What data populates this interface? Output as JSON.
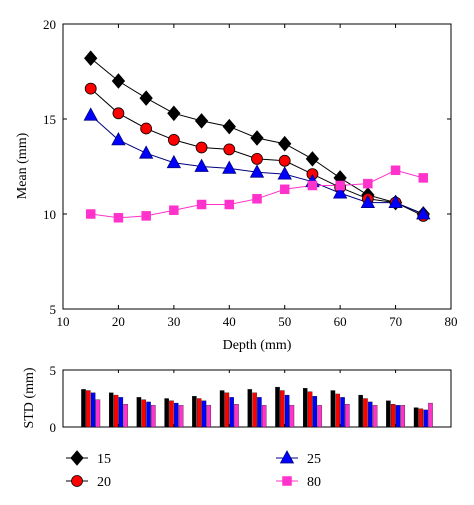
{
  "chart_data": [
    {
      "type": "line",
      "xlabel": "Depth (mm)",
      "ylabel": "Mean (mm)",
      "xlim": [
        10,
        80
      ],
      "ylim": [
        5,
        20
      ],
      "xticks": [
        "10",
        "20",
        "30",
        "40",
        "50",
        "60",
        "70",
        "80"
      ],
      "yticks": [
        "5",
        "10",
        "15",
        "20"
      ],
      "grid": false,
      "x": [
        15,
        20,
        25,
        30,
        35,
        40,
        45,
        50,
        55,
        60,
        65,
        70,
        75
      ],
      "series": [
        {
          "name": "15",
          "marker": "diamond",
          "color": "#000000",
          "fill": "#000000",
          "values": [
            18.2,
            17.0,
            16.1,
            15.3,
            14.9,
            14.6,
            14.0,
            13.7,
            12.9,
            11.9,
            11.0,
            10.6,
            10.0
          ]
        },
        {
          "name": "20",
          "marker": "circle",
          "color": "#000000",
          "fill": "#ff0000",
          "values": [
            16.6,
            15.3,
            14.5,
            13.9,
            13.5,
            13.4,
            12.9,
            12.8,
            12.1,
            11.4,
            10.8,
            10.6,
            9.9
          ]
        },
        {
          "name": "25",
          "marker": "triangle",
          "color": "#000080",
          "fill": "#0000ff",
          "values": [
            15.2,
            13.9,
            13.2,
            12.7,
            12.5,
            12.4,
            12.2,
            12.1,
            11.7,
            11.1,
            10.6,
            10.6,
            10.0
          ]
        },
        {
          "name": "80",
          "marker": "square",
          "color": "#ff33cc",
          "fill": "#ff33cc",
          "values": [
            10.0,
            9.8,
            9.9,
            10.2,
            10.5,
            10.5,
            10.8,
            11.3,
            11.5,
            11.5,
            11.6,
            12.3,
            11.9
          ]
        }
      ]
    },
    {
      "type": "bar",
      "ylabel": "STD (mm)",
      "ylim": [
        0,
        5
      ],
      "yticks": [
        "0",
        "5"
      ],
      "x": [
        15,
        20,
        25,
        30,
        35,
        40,
        45,
        50,
        55,
        60,
        65,
        70,
        75
      ],
      "series": [
        {
          "name": "15",
          "color": "#000000",
          "values": [
            3.3,
            3.0,
            2.6,
            2.5,
            2.7,
            3.2,
            3.3,
            3.5,
            3.4,
            3.2,
            2.8,
            2.3,
            1.7
          ]
        },
        {
          "name": "20",
          "color": "#ff0000",
          "values": [
            3.2,
            2.8,
            2.4,
            2.3,
            2.5,
            3.0,
            3.0,
            3.2,
            3.1,
            2.9,
            2.5,
            2.0,
            1.6
          ]
        },
        {
          "name": "25",
          "color": "#0000ff",
          "values": [
            3.0,
            2.6,
            2.2,
            2.1,
            2.3,
            2.6,
            2.6,
            2.8,
            2.7,
            2.6,
            2.2,
            1.9,
            1.5
          ]
        },
        {
          "name": "80",
          "color": "#ff33cc",
          "values": [
            2.4,
            2.0,
            1.9,
            1.9,
            1.9,
            2.0,
            1.9,
            1.9,
            1.9,
            2.0,
            1.9,
            1.9,
            2.1
          ]
        }
      ]
    }
  ],
  "legend": {
    "items": [
      {
        "label": "15",
        "marker": "diamond",
        "color": "#000000",
        "fill": "#000000"
      },
      {
        "label": "25",
        "marker": "triangle",
        "color": "#000080",
        "fill": "#0000ff"
      },
      {
        "label": "20",
        "marker": "circle",
        "color": "#000000",
        "fill": "#ff0000"
      },
      {
        "label": "80",
        "marker": "square",
        "color": "#ff33cc",
        "fill": "#ff33cc"
      }
    ]
  }
}
